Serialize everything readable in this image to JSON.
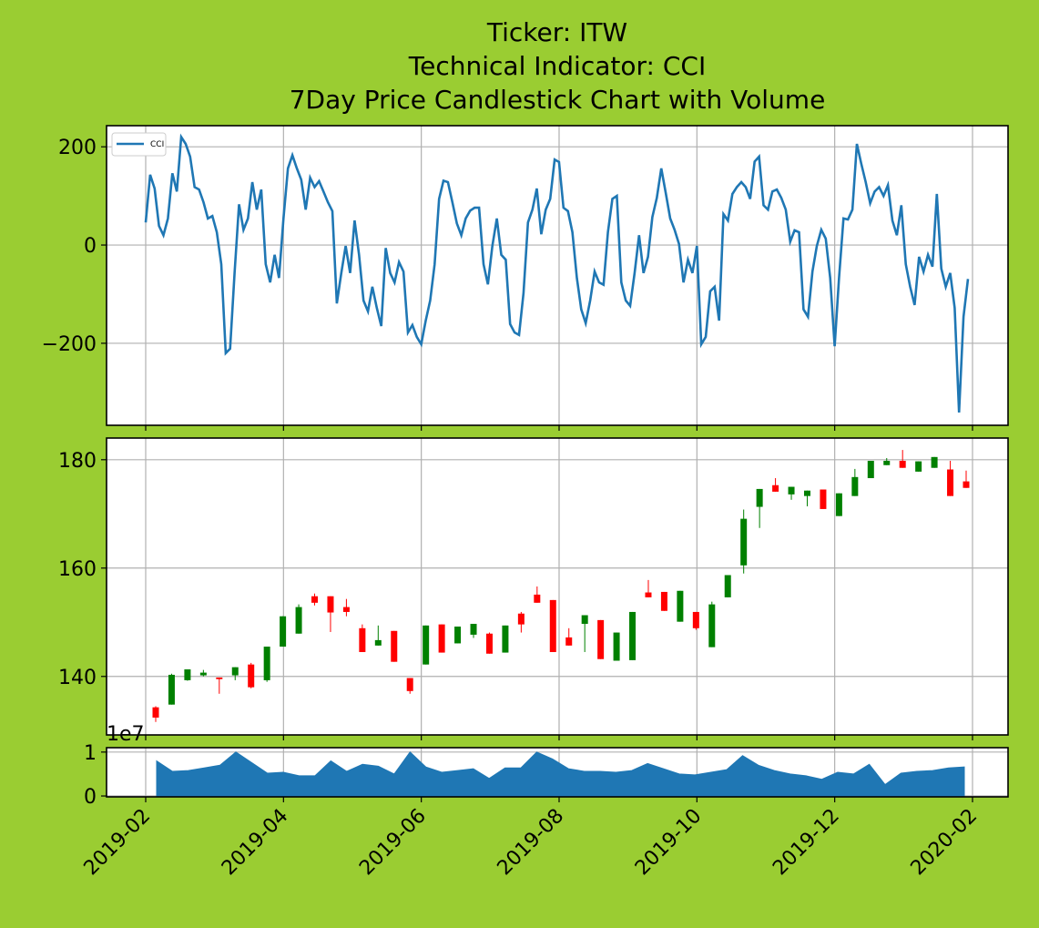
{
  "chart_data": [
    {
      "type": "line",
      "title": [
        "Ticker: ITW",
        "Technical Indicator: CCI",
        "7Day Price Candlestick Chart with Volume"
      ],
      "series": [
        {
          "name": "CCI",
          "color": "#1f77b4",
          "values": [
            46,
            143,
            115,
            39,
            20,
            54,
            146,
            109,
            220,
            206,
            180,
            118,
            113,
            87,
            54,
            59,
            26,
            -39,
            -220,
            -211,
            -57,
            83,
            31,
            54,
            128,
            72,
            113,
            -39,
            -76,
            -20,
            -67,
            54,
            156,
            183,
            156,
            133,
            72,
            137,
            118,
            130,
            109,
            87,
            69,
            -119,
            -57,
            -2,
            -57,
            50,
            -20,
            -113,
            -135,
            -85,
            -128,
            -165,
            -6,
            -57,
            -76,
            -35,
            -54,
            -178,
            -163,
            -187,
            -202,
            -154,
            -113,
            -39,
            94,
            131,
            128,
            87,
            44,
            20,
            54,
            70,
            76,
            76,
            -39,
            -80,
            -2,
            54,
            -20,
            -30,
            -161,
            -178,
            -183,
            -98,
            46,
            72,
            115,
            22,
            72,
            94,
            174,
            169,
            76,
            69,
            26,
            -67,
            -131,
            -159,
            -113,
            -54,
            -76,
            -81,
            26,
            94,
            100,
            -76,
            -113,
            -124,
            -57,
            20,
            -57,
            -24,
            57,
            96,
            156,
            106,
            54,
            31,
            2,
            -76,
            -30,
            -57,
            -2,
            -202,
            -187,
            -94,
            -85,
            -154,
            63,
            50,
            104,
            118,
            128,
            118,
            94,
            170,
            180,
            81,
            72,
            109,
            113,
            96,
            72,
            7,
            30,
            26,
            -131,
            -146,
            -54,
            -2,
            31,
            13,
            -67,
            -206,
            -67,
            54,
            52,
            72,
            206,
            165,
            128,
            85,
            109,
            118,
            100,
            122,
            50,
            20,
            81,
            -39,
            -85,
            -122,
            -24,
            -54,
            -20,
            -44,
            104,
            -48,
            -85,
            -57,
            -128,
            -341,
            -146,
            -69
          ]
        }
      ],
      "legend": "upper left",
      "ylim": [
        -367,
        243
      ],
      "yticks": [
        {
          "value": -200,
          "label": "−200"
        },
        0,
        200
      ],
      "grid": true
    },
    {
      "type": "candlestick",
      "up_color": "#008000",
      "down_color": "#ff0000",
      "open": [
        134.3,
        134.8,
        139.3,
        140.2,
        139.8,
        140.2,
        142.2,
        139.3,
        145.5,
        147.9,
        154.8,
        154.8,
        152.8,
        148.9,
        145.7,
        148.4,
        139.7,
        142.2,
        149.6,
        146.1,
        147.7,
        147.9,
        144.4,
        151.6,
        155.1,
        154.1,
        147.2,
        149.7,
        150.4,
        142.9,
        143.0,
        155.5,
        155.6,
        150.1,
        151.9,
        145.4,
        154.6,
        160.5,
        171.3,
        175.3,
        173.6,
        173.3,
        174.5,
        169.6,
        173.3,
        176.6,
        179.0,
        179.8,
        177.8,
        178.5,
        178.2,
        176.0
      ],
      "high": [
        134.5,
        140.5,
        141.3,
        141.2,
        139.8,
        141.7,
        142.5,
        145.5,
        151.1,
        153.3,
        155.3,
        154.8,
        154.3,
        149.6,
        149.4,
        148.4,
        139.7,
        149.4,
        149.6,
        149.2,
        149.7,
        148.1,
        149.4,
        151.9,
        156.6,
        154.1,
        148.9,
        151.3,
        150.4,
        148.1,
        151.9,
        157.8,
        155.6,
        155.8,
        151.9,
        153.8,
        158.7,
        170.8,
        174.6,
        176.6,
        175.0,
        174.3,
        174.5,
        173.8,
        178.3,
        179.8,
        180.3,
        181.8,
        179.7,
        180.5,
        179.8,
        178.0
      ],
      "low": [
        131.6,
        134.8,
        139.2,
        140.0,
        136.8,
        139.3,
        137.8,
        139.0,
        145.5,
        147.9,
        153.1,
        148.2,
        151.1,
        144.5,
        145.7,
        142.7,
        136.8,
        142.2,
        144.4,
        146.1,
        147.1,
        144.2,
        144.4,
        148.1,
        153.6,
        144.5,
        145.7,
        144.5,
        143.2,
        142.9,
        143.0,
        154.6,
        152.1,
        150.1,
        148.6,
        145.4,
        154.6,
        159.0,
        167.4,
        174.1,
        172.6,
        171.4,
        170.9,
        169.6,
        173.3,
        176.6,
        179.0,
        178.5,
        177.8,
        178.5,
        173.3,
        174.8
      ],
      "close": [
        132.4,
        140.3,
        141.3,
        140.7,
        139.5,
        141.7,
        138.0,
        145.5,
        151.1,
        152.8,
        153.6,
        151.8,
        151.9,
        144.5,
        146.7,
        142.7,
        137.3,
        149.4,
        144.4,
        149.2,
        149.7,
        144.2,
        149.4,
        149.6,
        153.6,
        144.5,
        145.7,
        151.3,
        143.2,
        148.1,
        151.9,
        154.6,
        152.1,
        155.8,
        148.9,
        153.3,
        158.7,
        169.1,
        174.6,
        174.1,
        175.0,
        174.3,
        170.9,
        173.8,
        176.8,
        179.8,
        179.8,
        178.5,
        179.7,
        180.5,
        173.3,
        174.8
      ],
      "ylim": [
        129.2,
        184
      ],
      "yticks": [
        140,
        160,
        180
      ],
      "grid": true
    },
    {
      "type": "area",
      "color": "#1f77b4",
      "values": [
        0.8,
        0.56,
        0.58,
        0.64,
        0.7,
        1.0,
        0.76,
        0.52,
        0.54,
        0.46,
        0.46,
        0.8,
        0.56,
        0.72,
        0.68,
        0.5,
        1.0,
        0.66,
        0.54,
        0.58,
        0.62,
        0.4,
        0.64,
        0.64,
        1.0,
        0.84,
        0.62,
        0.56,
        0.56,
        0.54,
        0.58,
        0.74,
        0.62,
        0.5,
        0.48,
        0.54,
        0.6,
        0.92,
        0.7,
        0.58,
        0.5,
        0.46,
        0.38,
        0.54,
        0.5,
        0.72,
        0.26,
        0.52,
        0.56,
        0.58,
        0.64,
        0.66
      ],
      "y_offset_label": "1e7",
      "ylim": [
        -0.02,
        1.1
      ],
      "yticks": [
        0,
        1
      ],
      "xticks": [
        "2019-02",
        "2019-04",
        "2019-06",
        "2019-08",
        "2019-10",
        "2019-12",
        "2020-02"
      ],
      "grid": true
    }
  ]
}
